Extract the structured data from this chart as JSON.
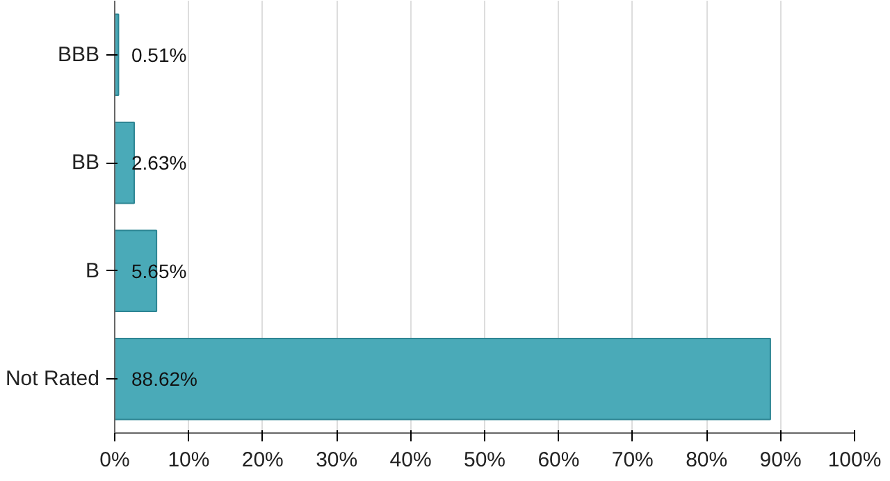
{
  "chart_data": {
    "type": "bar",
    "orientation": "horizontal",
    "categories": [
      "BBB",
      "BB",
      "B",
      "Not Rated"
    ],
    "values": [
      0.51,
      2.63,
      5.65,
      88.62
    ],
    "value_labels": [
      "0.51%",
      "2.63%",
      "5.65%",
      "88.62%"
    ],
    "color": "#4aaab8",
    "xlim": [
      0,
      100
    ],
    "xticks": [
      {
        "value": 0,
        "label": "0%"
      },
      {
        "value": 10,
        "label": "10%"
      },
      {
        "value": 20,
        "label": "20%"
      },
      {
        "value": 30,
        "label": "30%"
      },
      {
        "value": 40,
        "label": "40%"
      },
      {
        "value": 50,
        "label": "50%"
      },
      {
        "value": 60,
        "label": "60%"
      },
      {
        "value": 70,
        "label": "70%"
      },
      {
        "value": 80,
        "label": "80%"
      },
      {
        "value": 90,
        "label": "90%"
      },
      {
        "value": 100,
        "label": "100%"
      }
    ],
    "grid": "x"
  }
}
